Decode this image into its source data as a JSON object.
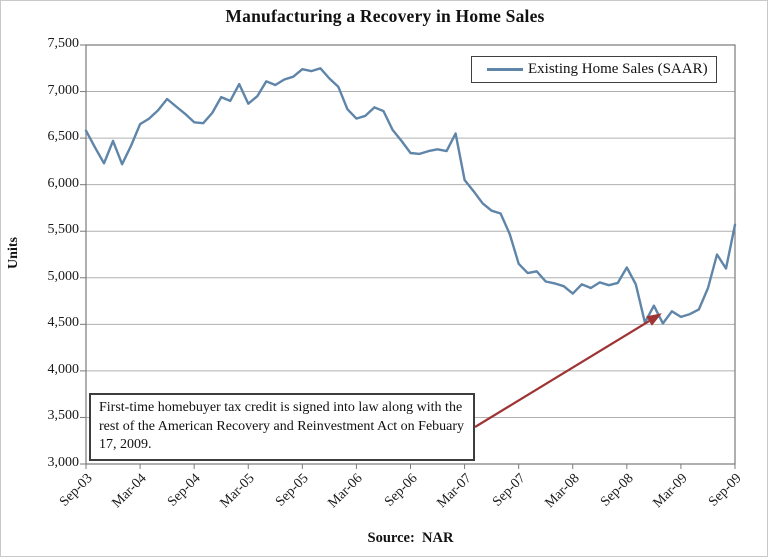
{
  "title": "Manufacturing a Recovery in Home Sales",
  "y_axis_label": "Units",
  "source_label": "Source:  NAR",
  "legend": {
    "label": "Existing Home Sales (SAAR)"
  },
  "annotation": {
    "text": "First-time homebuyer tax credit is signed into law along with the rest of the American Recovery and Reinvestment Act on Febuary 17, 2009.",
    "arrow_points_to": "Feb-09"
  },
  "colors": {
    "line": "#5f85a9",
    "arrow": "#9e3434",
    "grid": "#b0b0b0",
    "plot_border": "#7a7a7a",
    "text": "#1a1a1a"
  },
  "chart_data": {
    "type": "line",
    "title": "Manufacturing a Recovery in Home Sales",
    "xlabel": "",
    "ylabel": "Units",
    "ylim": [
      3000,
      7500
    ],
    "y_tick_step": 500,
    "grid": "horizontal",
    "legend_entries": [
      "Existing Home Sales (SAAR)"
    ],
    "legend_position": "top-right",
    "x_tick_labels": [
      "Sep-03",
      "Mar-04",
      "Sep-04",
      "Mar-05",
      "Sep-05",
      "Mar-06",
      "Sep-06",
      "Mar-07",
      "Sep-07",
      "Mar-08",
      "Sep-08",
      "Mar-09",
      "Sep-09"
    ],
    "x_tick_every": 6,
    "x": [
      "Sep-03",
      "Oct-03",
      "Nov-03",
      "Dec-03",
      "Jan-04",
      "Feb-04",
      "Mar-04",
      "Apr-04",
      "May-04",
      "Jun-04",
      "Jul-04",
      "Aug-04",
      "Sep-04",
      "Oct-04",
      "Nov-04",
      "Dec-04",
      "Jan-05",
      "Feb-05",
      "Mar-05",
      "Apr-05",
      "May-05",
      "Jun-05",
      "Jul-05",
      "Aug-05",
      "Sep-05",
      "Oct-05",
      "Nov-05",
      "Dec-05",
      "Jan-06",
      "Feb-06",
      "Mar-06",
      "Apr-06",
      "May-06",
      "Jun-06",
      "Jul-06",
      "Aug-06",
      "Sep-06",
      "Oct-06",
      "Nov-06",
      "Dec-06",
      "Jan-07",
      "Feb-07",
      "Mar-07",
      "Apr-07",
      "May-07",
      "Jun-07",
      "Jul-07",
      "Aug-07",
      "Sep-07",
      "Oct-07",
      "Nov-07",
      "Dec-07",
      "Jan-08",
      "Feb-08",
      "Mar-08",
      "Apr-08",
      "May-08",
      "Jun-08",
      "Jul-08",
      "Aug-08",
      "Sep-08",
      "Oct-08",
      "Nov-08",
      "Dec-08",
      "Jan-09",
      "Feb-09",
      "Mar-09",
      "Apr-09",
      "May-09",
      "Jun-09",
      "Jul-09",
      "Aug-09",
      "Sep-09"
    ],
    "series": [
      {
        "name": "Existing Home Sales (SAAR)",
        "values": [
          6580,
          6400,
          6230,
          6470,
          6220,
          6420,
          6650,
          6710,
          6800,
          6920,
          6840,
          6760,
          6670,
          6660,
          6770,
          6940,
          6900,
          7080,
          6870,
          6950,
          7110,
          7070,
          7130,
          7160,
          7240,
          7220,
          7250,
          7140,
          7050,
          6810,
          6710,
          6740,
          6830,
          6790,
          6590,
          6470,
          6340,
          6330,
          6360,
          6380,
          6360,
          6550,
          6050,
          5930,
          5800,
          5720,
          5690,
          5470,
          5150,
          5050,
          5070,
          4960,
          4940,
          4910,
          4830,
          4930,
          4890,
          4950,
          4920,
          4945,
          5110,
          4930,
          4520,
          4700,
          4510,
          4640,
          4580,
          4610,
          4660,
          4890,
          5250,
          5100,
          5570
        ]
      }
    ]
  }
}
